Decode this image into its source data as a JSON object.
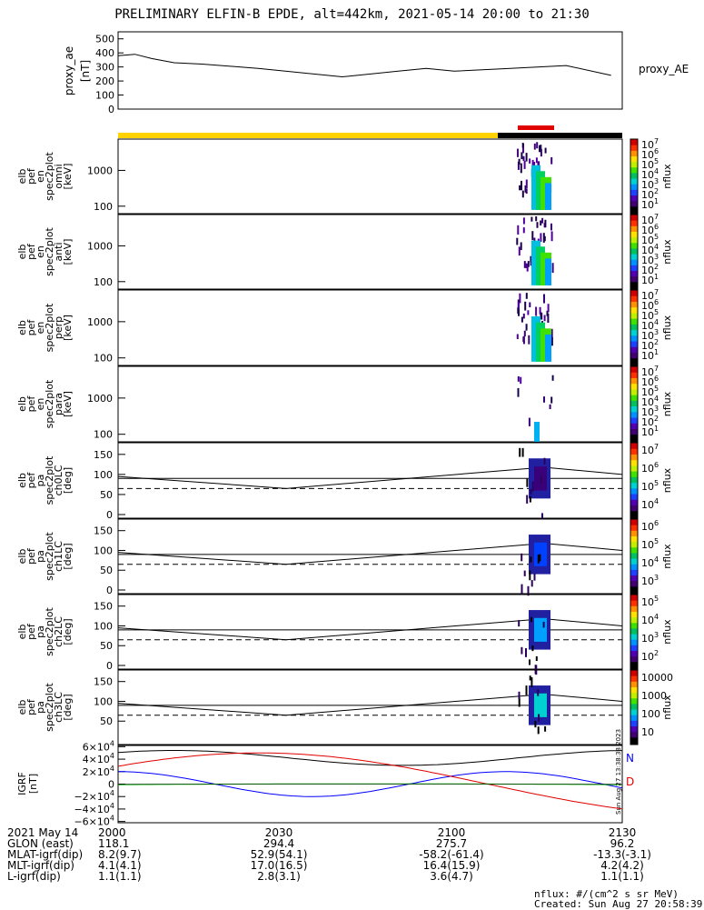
{
  "title": "PRELIMINARY ELFIN-B EPDE, alt=442km, 2021-05-14 20:00 to 21:30",
  "colors": {
    "yellow": "#ffd200",
    "black": "#000000",
    "red": "#e00000",
    "blue": "#0000ff",
    "green": "#00b000"
  },
  "chart_data": [
    {
      "name": "proxy_ae",
      "type": "line",
      "ylabel": [
        "proxy_ae",
        "[nT]"
      ],
      "right_label": "proxy_AE",
      "yticks": [
        "500",
        "400",
        "300",
        "200",
        "100",
        "0"
      ],
      "ylim": [
        0,
        550
      ],
      "x": [
        0,
        3,
        6,
        10,
        15,
        25,
        40,
        50,
        55,
        60,
        70,
        80,
        88
      ],
      "values": [
        380,
        390,
        360,
        330,
        320,
        290,
        230,
        270,
        290,
        270,
        290,
        310,
        240
      ]
    },
    {
      "name": "omni",
      "type": "heatmap",
      "ylabel": [
        "elb",
        "pef",
        "en",
        "spec2plot",
        "omni",
        "[keV]"
      ],
      "yticks": [
        "1000",
        "100"
      ],
      "colorbar": {
        "label": "nflux",
        "ticks": [
          "10^7",
          "10^6",
          "10^5",
          "10^4",
          "10^3",
          "10^2",
          "10^1"
        ]
      }
    },
    {
      "name": "anti",
      "type": "heatmap",
      "ylabel": [
        "elb",
        "pef",
        "en",
        "spec2plot",
        "anti",
        "[keV]"
      ],
      "yticks": [
        "1000",
        "100"
      ],
      "colorbar": {
        "label": "nflux",
        "ticks": [
          "10^7",
          "10^6",
          "10^5",
          "10^4",
          "10^3",
          "10^2",
          "10^1"
        ]
      }
    },
    {
      "name": "perp",
      "type": "heatmap",
      "ylabel": [
        "elb",
        "pef",
        "en",
        "spec2plot",
        "perp",
        "[keV]"
      ],
      "yticks": [
        "1000",
        "100"
      ],
      "colorbar": {
        "label": "nflux",
        "ticks": [
          "10^7",
          "10^6",
          "10^5",
          "10^4",
          "10^3",
          "10^2",
          "10^1"
        ]
      }
    },
    {
      "name": "para",
      "type": "heatmap",
      "ylabel": [
        "elb",
        "pef",
        "en",
        "spec2plot",
        "para",
        "[keV]"
      ],
      "yticks": [
        "1000",
        "100"
      ],
      "colorbar": {
        "label": "nflux",
        "ticks": [
          "10^7",
          "10^6",
          "10^5",
          "10^4",
          "10^3",
          "10^2",
          "10^1"
        ]
      }
    },
    {
      "name": "ch0LC",
      "type": "heatmap",
      "ylabel": [
        "elb",
        "pef",
        "pa",
        "spec2plot",
        "ch0LC",
        "[deg]"
      ],
      "yticks": [
        "150",
        "100",
        "50",
        "0"
      ],
      "colorbar": {
        "label": "nflux",
        "ticks": [
          "10^7",
          "10^6",
          "10^5",
          "10^4"
        ]
      }
    },
    {
      "name": "ch1LC",
      "type": "heatmap",
      "ylabel": [
        "elb",
        "pef",
        "pa",
        "spec2plot",
        "ch1LC",
        "[deg]"
      ],
      "yticks": [
        "150",
        "100",
        "50",
        "0"
      ],
      "colorbar": {
        "label": "nflux",
        "ticks": [
          "10^6",
          "10^5",
          "10^4",
          "10^3"
        ]
      }
    },
    {
      "name": "ch2LC",
      "type": "heatmap",
      "ylabel": [
        "elb",
        "pef",
        "pa",
        "spec2plot",
        "ch2LC",
        "[deg]"
      ],
      "yticks": [
        "150",
        "100",
        "50",
        "0"
      ],
      "colorbar": {
        "label": "nflux",
        "ticks": [
          "10^5",
          "10^4",
          "10^3",
          "10^2"
        ]
      }
    },
    {
      "name": "ch3LC",
      "type": "heatmap",
      "ylabel": [
        "elb",
        "pef",
        "pa",
        "spec2plot",
        "ch3LC",
        "[deg]"
      ],
      "yticks": [
        "150",
        "100",
        "50"
      ],
      "colorbar": {
        "label": "nflux",
        "ticks": [
          "10000",
          "1000",
          "100",
          "10"
        ]
      }
    },
    {
      "name": "IGRF",
      "type": "line",
      "ylabel": [
        "IGRF",
        "[nT]"
      ],
      "yticks": [
        "6×10^4",
        "4×10^4",
        "2×10^4",
        "0",
        "−2×10^4",
        "−4×10^4",
        "−6×10^4"
      ],
      "ylim": [
        -60000,
        60000
      ],
      "series": [
        {
          "name": "N",
          "color": "#0000ff"
        },
        {
          "name": "D",
          "color": "#e00000"
        }
      ],
      "stamp": "Sun Aug 27 13:38:38 2023"
    }
  ],
  "footer": {
    "rows": [
      [
        "2021 May 14",
        "2000",
        "2030",
        "2100",
        "2130"
      ],
      [
        "GLON (east)",
        "118.1",
        "294.4",
        "275.7",
        "96.2"
      ],
      [
        "MLAT-igrf(dip)",
        "8.2(9.7)",
        "52.9(54.1)",
        "-58.2(-61.4)",
        "-13.3(-3.1)"
      ],
      [
        "MLT-igrf(dip)",
        "4.1(4.1)",
        "17.0(16.5)",
        "16.4(15.9)",
        "4.2(4.2)"
      ],
      [
        "L-igrf(dip)",
        "1.1(1.1)",
        "2.8(3.1)",
        "3.6(4.7)",
        "1.1(1.1)"
      ]
    ],
    "units": "nflux: #/(cm^2 s sr MeV)",
    "created": "Created: Sun Aug 27 20:58:39 2023"
  }
}
